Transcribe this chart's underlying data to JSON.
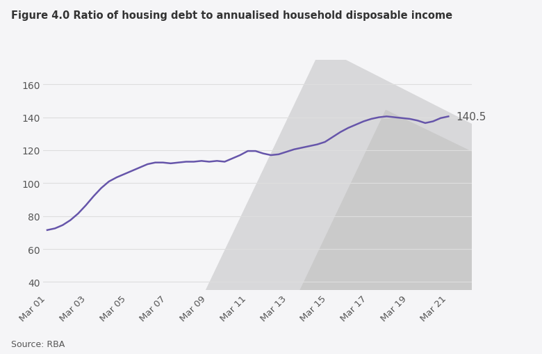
{
  "title": "Figure 4.0 Ratio of housing debt to annualised household disposable income",
  "source": "Source: RBA",
  "line_color": "#6655AA",
  "background_color": "#F5F5F7",
  "plot_bg_color": "#F5F5F7",
  "ylim": [
    35,
    175
  ],
  "yticks": [
    40,
    60,
    80,
    100,
    120,
    140,
    160
  ],
  "end_label": "140.5",
  "x_labels": [
    "Mar 01",
    "Mar 03",
    "Mar 05",
    "Mar 07",
    "Mar 09",
    "Mar 11",
    "Mar 13",
    "Mar 15",
    "Mar 17",
    "Mar 19",
    "Mar 21"
  ],
  "data": [
    [
      0,
      71.5
    ],
    [
      1,
      72.5
    ],
    [
      2,
      74.5
    ],
    [
      3,
      77.5
    ],
    [
      4,
      81.5
    ],
    [
      5,
      86.5
    ],
    [
      6,
      92.0
    ],
    [
      7,
      97.0
    ],
    [
      8,
      101.0
    ],
    [
      9,
      103.5
    ],
    [
      10,
      105.5
    ],
    [
      11,
      107.5
    ],
    [
      12,
      109.5
    ],
    [
      13,
      111.5
    ],
    [
      14,
      112.5
    ],
    [
      15,
      112.5
    ],
    [
      16,
      112.0
    ],
    [
      17,
      112.5
    ],
    [
      18,
      113.0
    ],
    [
      19,
      113.0
    ],
    [
      20,
      113.5
    ],
    [
      21,
      113.0
    ],
    [
      22,
      113.5
    ],
    [
      23,
      113.0
    ],
    [
      24,
      115.0
    ],
    [
      25,
      117.0
    ],
    [
      26,
      119.5
    ],
    [
      27,
      119.5
    ],
    [
      28,
      118.0
    ],
    [
      29,
      117.0
    ],
    [
      30,
      117.5
    ],
    [
      31,
      119.0
    ],
    [
      32,
      120.5
    ],
    [
      33,
      121.5
    ],
    [
      34,
      122.5
    ],
    [
      35,
      123.5
    ],
    [
      36,
      125.0
    ],
    [
      37,
      128.0
    ],
    [
      38,
      131.0
    ],
    [
      39,
      133.5
    ],
    [
      40,
      135.5
    ],
    [
      41,
      137.5
    ],
    [
      42,
      139.0
    ],
    [
      43,
      140.0
    ],
    [
      44,
      140.5
    ],
    [
      45,
      140.0
    ],
    [
      46,
      139.5
    ],
    [
      47,
      139.0
    ],
    [
      48,
      138.0
    ],
    [
      49,
      136.5
    ],
    [
      50,
      137.5
    ],
    [
      51,
      139.5
    ],
    [
      52,
      140.5
    ]
  ],
  "grid_color": "#DEDEDE",
  "tick_label_color": "#555555",
  "title_color": "#333333"
}
